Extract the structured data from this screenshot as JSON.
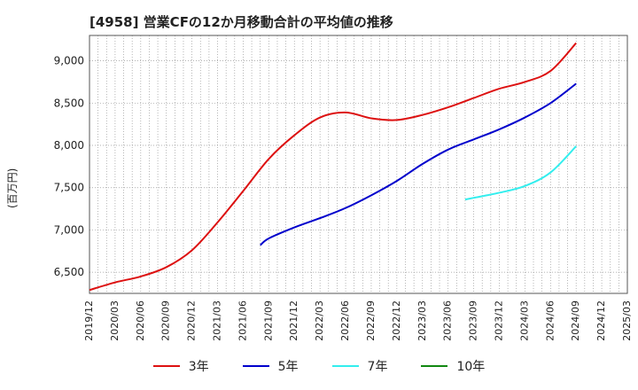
{
  "chart_data": {
    "type": "line",
    "title": "[4958]  営業CFの12か月移動合計の平均値の推移",
    "ylabel": "(百万円)",
    "xlabel": "",
    "ylim": [
      6250,
      9300
    ],
    "yticks": [
      6500,
      7000,
      7500,
      8000,
      8500,
      9000
    ],
    "ytick_labels": [
      "6,500",
      "7,000",
      "7,500",
      "8,000",
      "8,500",
      "9,000"
    ],
    "xticks": [
      "2019/12",
      "2020/03",
      "2020/06",
      "2020/09",
      "2020/12",
      "2021/03",
      "2021/06",
      "2021/09",
      "2021/12",
      "2022/03",
      "2022/06",
      "2022/09",
      "2022/12",
      "2023/03",
      "2023/06",
      "2023/09",
      "2023/12",
      "2024/03",
      "2024/06",
      "2024/09",
      "2024/12",
      "2025/03"
    ],
    "grid": true,
    "legend_position": "bottom",
    "series": [
      {
        "name": "3年",
        "color": "#dd1111",
        "x": [
          "2019/12",
          "2020/03",
          "2020/06",
          "2020/09",
          "2020/12",
          "2021/03",
          "2021/06",
          "2021/09",
          "2021/12",
          "2022/03",
          "2022/06",
          "2022/09",
          "2022/12",
          "2023/03",
          "2023/06",
          "2023/09",
          "2023/12",
          "2024/03",
          "2024/06",
          "2024/09"
        ],
        "values": [
          6290,
          6380,
          6450,
          6560,
          6760,
          7090,
          7460,
          7840,
          8120,
          8330,
          8390,
          8320,
          8300,
          8360,
          8450,
          8560,
          8670,
          8750,
          8880,
          9210
        ]
      },
      {
        "name": "5年",
        "color": "#0000cc",
        "x": [
          "2021/08",
          "2021/09",
          "2021/12",
          "2022/03",
          "2022/06",
          "2022/09",
          "2022/12",
          "2023/03",
          "2023/06",
          "2023/09",
          "2023/12",
          "2024/03",
          "2024/06",
          "2024/09"
        ],
        "values": [
          6820,
          6900,
          7030,
          7140,
          7260,
          7410,
          7580,
          7780,
          7950,
          8070,
          8190,
          8330,
          8500,
          8730
        ]
      },
      {
        "name": "7年",
        "color": "#33eeee",
        "x": [
          "2023/08",
          "2023/09",
          "2023/12",
          "2024/03",
          "2024/06",
          "2024/09"
        ],
        "values": [
          7360,
          7380,
          7440,
          7520,
          7680,
          7990
        ]
      },
      {
        "name": "10年",
        "color": "#118811",
        "x": [],
        "values": []
      }
    ]
  }
}
